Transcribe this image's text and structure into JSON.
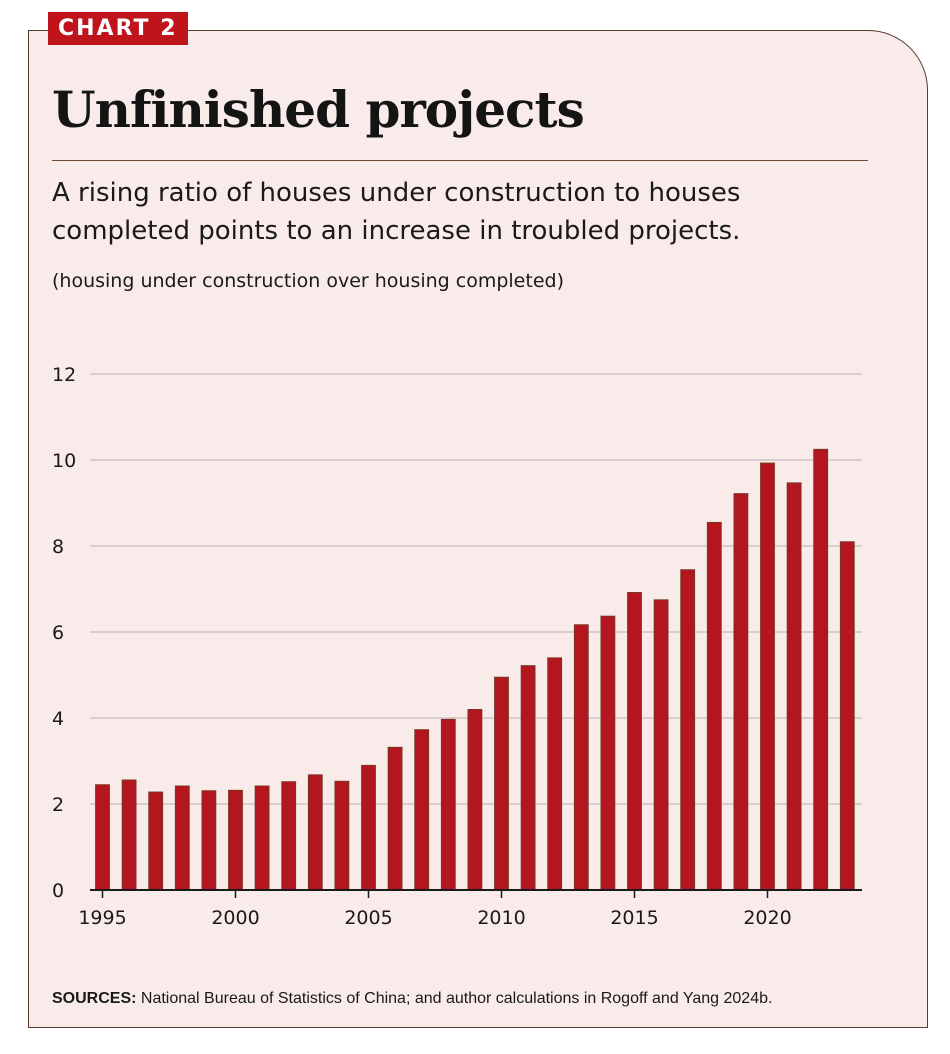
{
  "badge": "CHART 2",
  "title": "Unfinished projects",
  "subtitle": "A rising ratio of houses under construction to houses completed points to an increase in troubled projects.",
  "unit_note": "(housing under construction over housing completed)",
  "sources": {
    "label": "SOURCES:",
    "text": "National Bureau of Statistics of China; and author calculations in Rogoff and Yang 2024b."
  },
  "colors": {
    "bar": "#b3161f",
    "bar_edge": "#6e3a24",
    "background": "#f9ebe9",
    "badge": "#c0141c",
    "grid": "#d9cccc"
  },
  "chart_data": {
    "type": "bar",
    "title": "",
    "xlabel": "",
    "ylabel": "",
    "ylim": [
      0,
      12
    ],
    "yticks": [
      0,
      2,
      4,
      6,
      8,
      10,
      12
    ],
    "xticks": [
      1995,
      2000,
      2005,
      2010,
      2015,
      2020
    ],
    "grid": true,
    "legend": "none",
    "categories": [
      1995,
      1996,
      1997,
      1998,
      1999,
      2000,
      2001,
      2002,
      2003,
      2004,
      2005,
      2006,
      2007,
      2008,
      2009,
      2010,
      2011,
      2012,
      2013,
      2014,
      2015,
      2016,
      2017,
      2018,
      2019,
      2020,
      2021,
      2022,
      2023
    ],
    "values": [
      2.45,
      2.56,
      2.28,
      2.42,
      2.31,
      2.32,
      2.42,
      2.52,
      2.68,
      2.53,
      2.9,
      3.32,
      3.73,
      3.97,
      4.2,
      4.95,
      5.22,
      5.4,
      6.17,
      6.37,
      6.92,
      6.75,
      7.45,
      8.55,
      9.22,
      9.93,
      9.47,
      10.25,
      8.1
    ]
  }
}
